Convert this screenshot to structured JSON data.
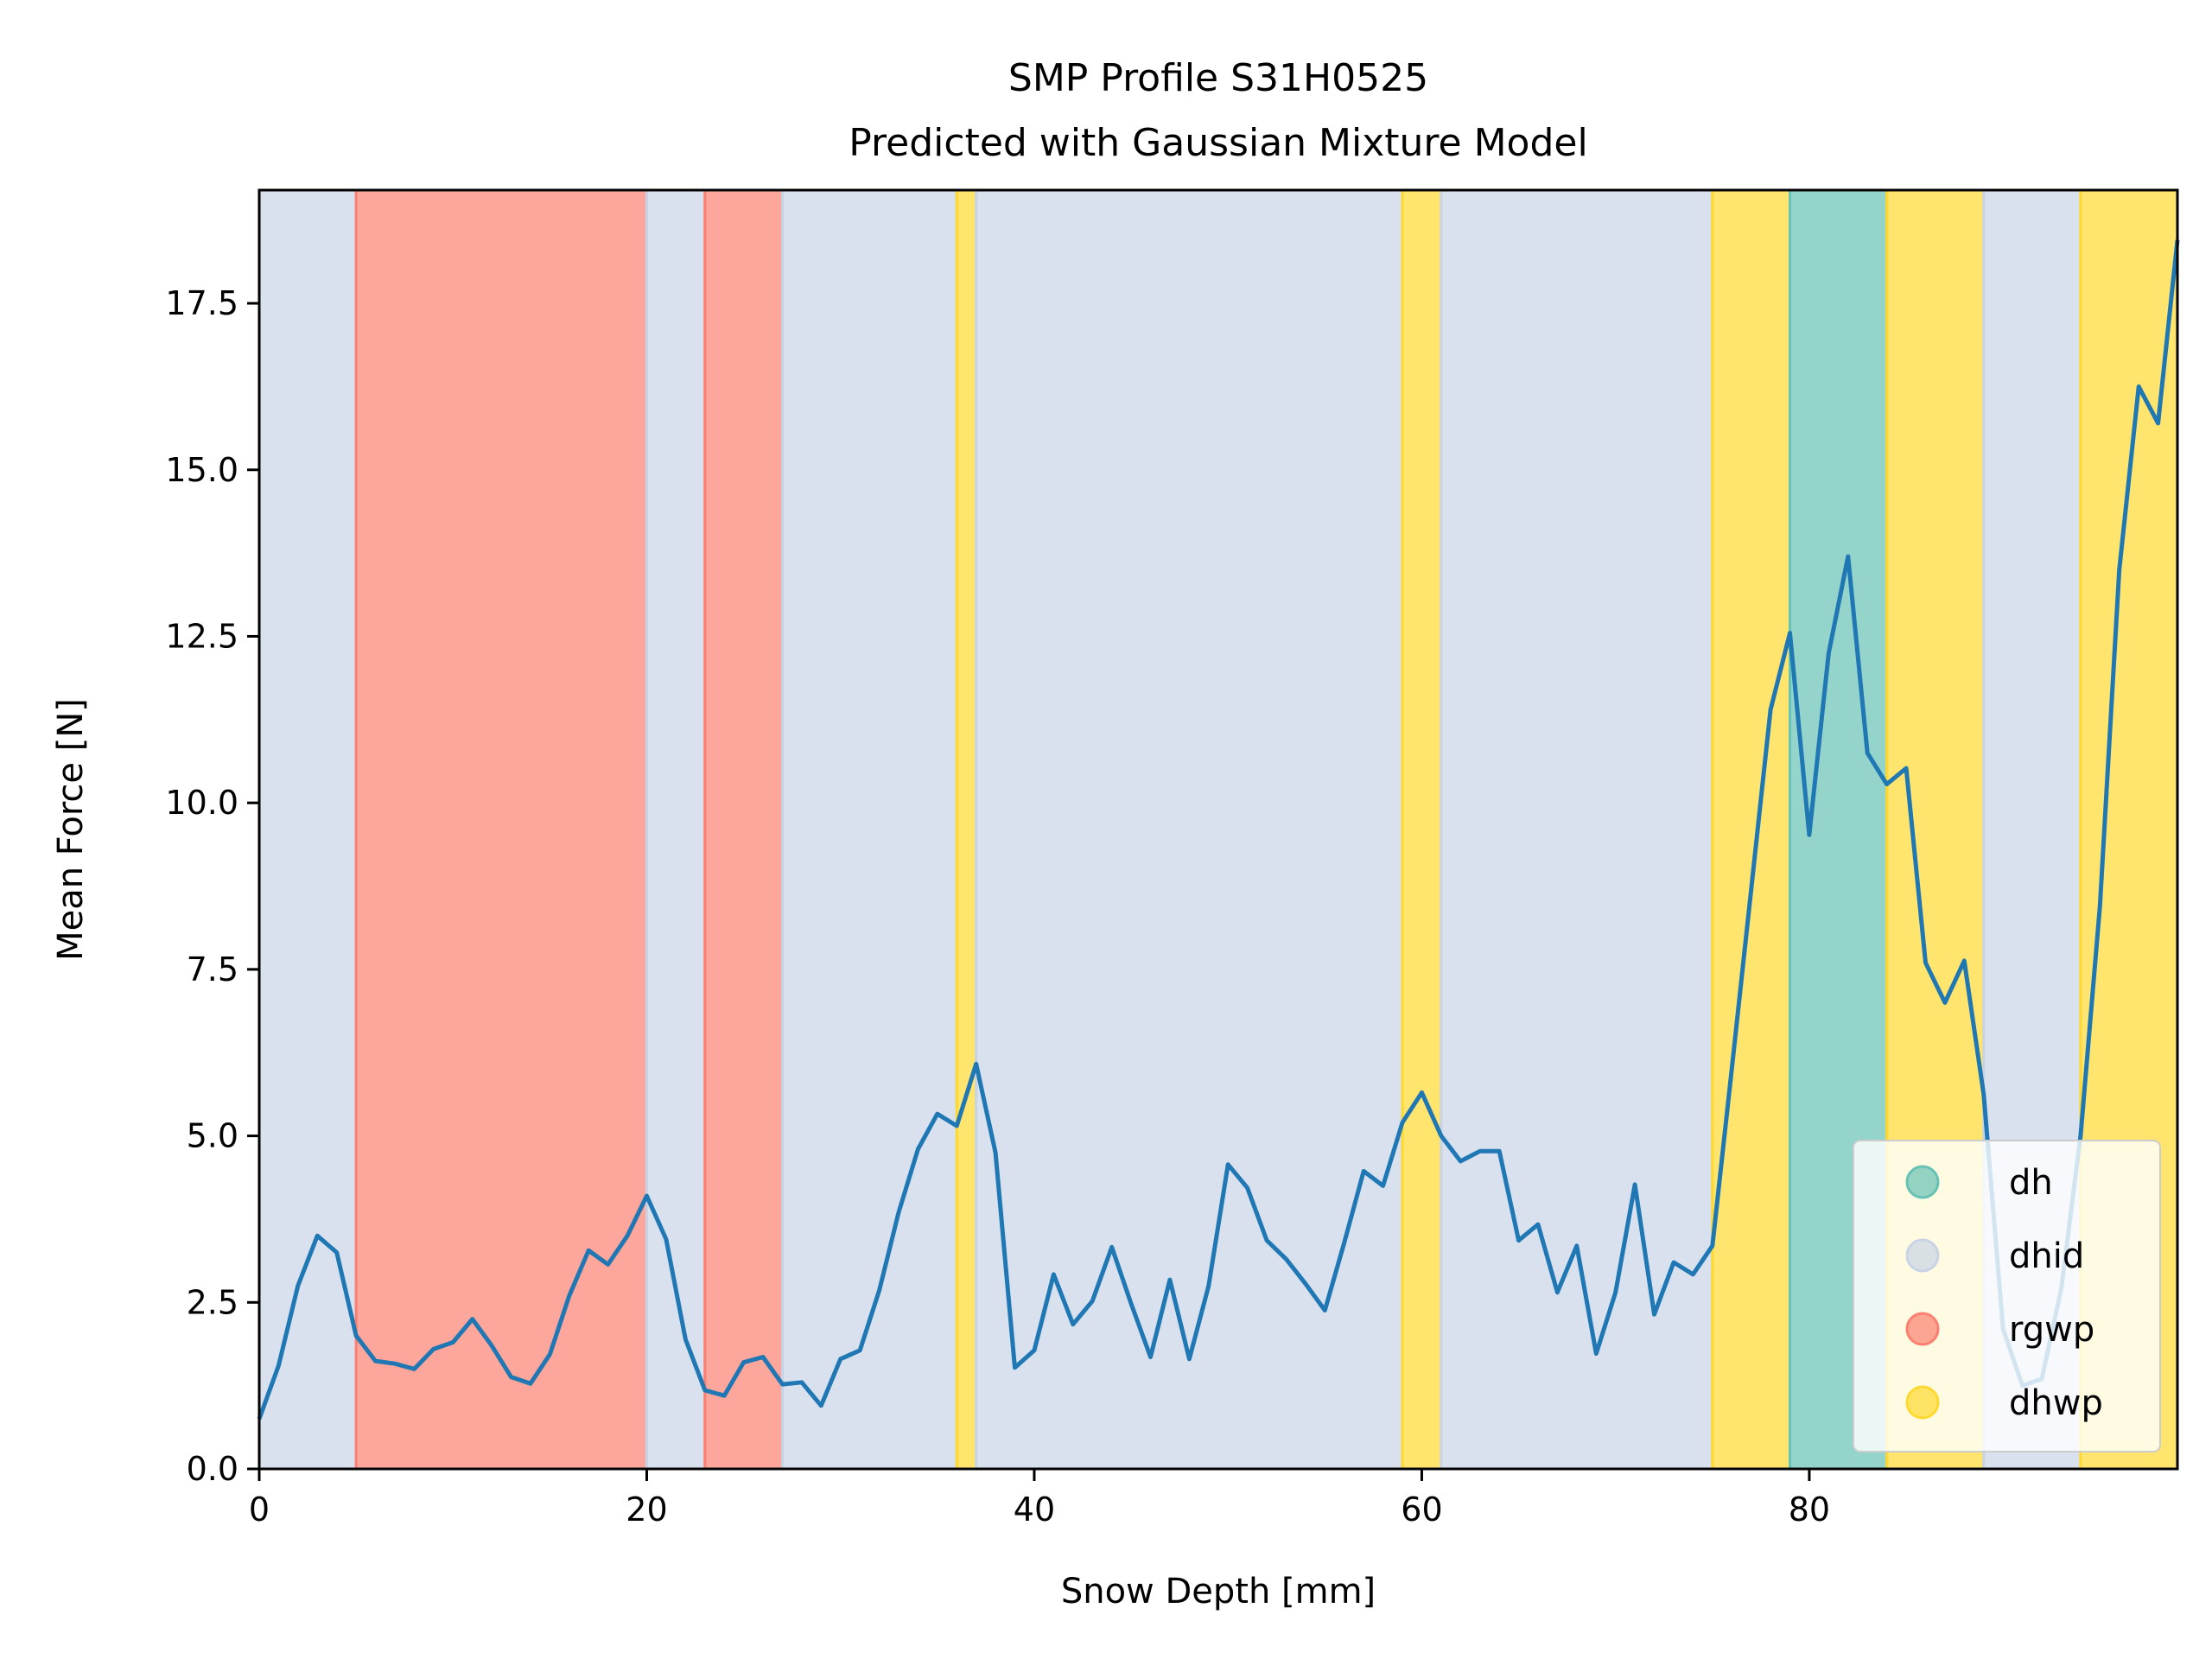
{
  "chart_data": {
    "type": "line",
    "title": "SMP Profile S31H0525",
    "subtitle": "Predicted with Gaussian Mixture Model",
    "xlabel": "Snow Depth [mm]",
    "ylabel": "Mean Force [N]",
    "xlim": [
      0,
      99
    ],
    "ylim": [
      0,
      19.2
    ],
    "xticks": [
      0,
      20,
      40,
      60,
      80
    ],
    "xtick_labels": [
      "0",
      "20",
      "40",
      "60",
      "80"
    ],
    "yticks": [
      0,
      2.5,
      5,
      7.5,
      10,
      12.5,
      15,
      17.5
    ],
    "ytick_labels": [
      "0.0",
      "2.5",
      "5.0",
      "7.5",
      "10.0",
      "12.5",
      "15.0",
      "17.5"
    ],
    "grid": false,
    "legend_position": "lower-right",
    "line_color": "#1f77b4",
    "classes": [
      {
        "name": "dh",
        "color": "#66c2b5"
      },
      {
        "name": "dhid",
        "color": "#c8d4e6"
      },
      {
        "name": "rgwp",
        "color": "#fb8072"
      },
      {
        "name": "dhwp",
        "color": "#ffd92f"
      }
    ],
    "regions": [
      {
        "start": 0,
        "end": 5,
        "class": "dhid"
      },
      {
        "start": 5,
        "end": 20,
        "class": "rgwp"
      },
      {
        "start": 20,
        "end": 23,
        "class": "dhid"
      },
      {
        "start": 23,
        "end": 27,
        "class": "rgwp"
      },
      {
        "start": 27,
        "end": 36,
        "class": "dhid"
      },
      {
        "start": 36,
        "end": 37,
        "class": "dhwp"
      },
      {
        "start": 37,
        "end": 59,
        "class": "dhid"
      },
      {
        "start": 59,
        "end": 61,
        "class": "dhwp"
      },
      {
        "start": 61,
        "end": 75,
        "class": "dhid"
      },
      {
        "start": 75,
        "end": 79,
        "class": "dhwp"
      },
      {
        "start": 79,
        "end": 84,
        "class": "dh"
      },
      {
        "start": 84,
        "end": 89,
        "class": "dhwp"
      },
      {
        "start": 89,
        "end": 94,
        "class": "dhid"
      },
      {
        "start": 94,
        "end": 99,
        "class": "dhwp"
      }
    ],
    "series": [
      {
        "x": [
          0,
          1,
          2,
          3,
          4,
          5,
          6,
          7,
          8,
          9,
          10,
          11,
          12,
          13,
          14,
          15,
          16,
          17,
          18,
          19,
          20,
          21,
          22,
          23,
          24,
          25,
          26,
          27,
          28,
          29,
          30,
          31,
          32,
          33,
          34,
          35,
          36,
          37,
          38,
          39,
          40,
          41,
          42,
          43,
          44,
          45,
          46,
          47,
          48,
          49,
          50,
          51,
          52,
          53,
          54,
          55,
          56,
          57,
          58,
          59,
          60,
          61,
          62,
          63,
          64,
          65,
          66,
          67,
          68,
          69,
          70,
          71,
          72,
          73,
          74,
          75,
          76,
          77,
          78,
          79,
          80,
          81,
          82,
          83,
          84,
          85,
          86,
          87,
          88,
          89,
          90,
          91,
          92,
          93,
          94,
          95,
          96,
          97,
          98,
          99
        ],
        "y": [
          0.75,
          1.55,
          2.75,
          3.5,
          3.25,
          2.0,
          1.62,
          1.58,
          1.5,
          1.8,
          1.9,
          2.25,
          1.85,
          1.38,
          1.28,
          1.72,
          2.6,
          3.28,
          3.07,
          3.5,
          4.1,
          3.45,
          1.95,
          1.18,
          1.1,
          1.6,
          1.68,
          1.27,
          1.3,
          0.95,
          1.65,
          1.78,
          2.68,
          3.85,
          4.8,
          5.33,
          5.15,
          6.08,
          4.75,
          1.52,
          1.78,
          2.92,
          2.17,
          2.52,
          3.33,
          2.48,
          1.68,
          2.84,
          1.65,
          2.75,
          4.57,
          4.22,
          3.43,
          3.15,
          2.78,
          2.38,
          3.4,
          4.47,
          4.25,
          5.2,
          5.65,
          5.0,
          4.62,
          4.77,
          4.77,
          3.43,
          3.67,
          2.65,
          3.35,
          1.73,
          2.65,
          4.27,
          2.32,
          3.1,
          2.92,
          3.35,
          6.0,
          8.7,
          11.4,
          12.55,
          9.52,
          12.25,
          13.7,
          10.75,
          10.28,
          10.52,
          7.6,
          7.0,
          7.63,
          5.62,
          2.1,
          1.25,
          1.35,
          2.7,
          5.0,
          8.45,
          13.5,
          16.25,
          15.7,
          18.45
        ]
      }
    ],
    "legend": [
      "dh",
      "dhid",
      "rgwp",
      "dhwp"
    ]
  }
}
